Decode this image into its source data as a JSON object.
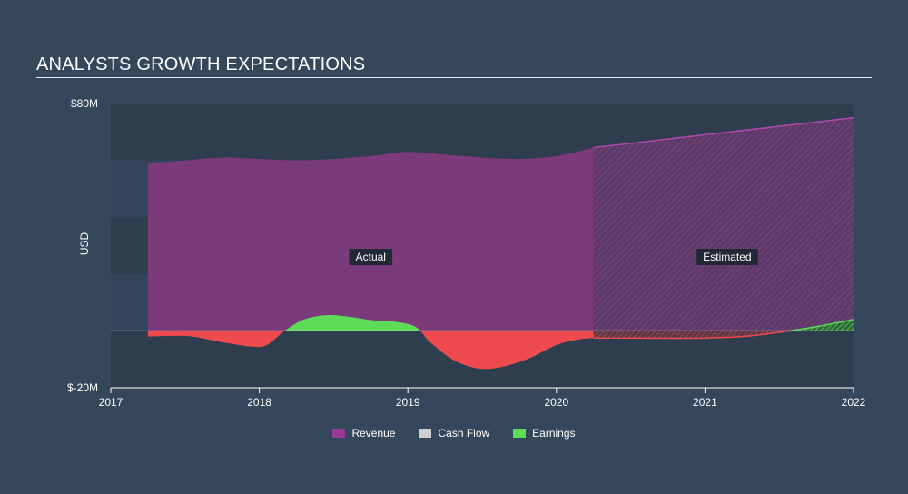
{
  "title": "ANALYSTS GROWTH EXPECTATIONS",
  "colors": {
    "background": "#35475a",
    "plot_band_dark": "#2f3e4e",
    "plot_band_light": "#33455a",
    "revenue": "#7b3a7a",
    "cash_flow": "#cfcfcf",
    "earnings_pos": "#5ddc5a",
    "earnings_neg": "#ef4b4f"
  },
  "chart_data": {
    "type": "area",
    "ylabel": "USD",
    "ylim": [
      -20,
      80
    ],
    "xlim": [
      2017,
      2022
    ],
    "y_ticks": [
      {
        "value": 80,
        "label": "$80M"
      },
      {
        "value": -20,
        "label": "$-20M"
      }
    ],
    "x_ticks": [
      {
        "value": 2017,
        "label": "2017"
      },
      {
        "value": 2018,
        "label": "2018"
      },
      {
        "value": 2019,
        "label": "2019"
      },
      {
        "value": 2020,
        "label": "2020"
      },
      {
        "value": 2021,
        "label": "2021"
      },
      {
        "value": 2022,
        "label": "2022"
      }
    ],
    "forecast_start": 2020.25,
    "annotations": [
      {
        "text": "Actual",
        "x": 2018.75,
        "y": 26
      },
      {
        "text": "Estimated",
        "x": 2021.15,
        "y": 26
      }
    ],
    "series": [
      {
        "name": "Revenue",
        "color": "#9b3a9a",
        "points": [
          [
            2017.25,
            59
          ],
          [
            2017.5,
            60
          ],
          [
            2017.75,
            61
          ],
          [
            2018.0,
            60.5
          ],
          [
            2018.25,
            60
          ],
          [
            2018.5,
            60.5
          ],
          [
            2018.75,
            61.5
          ],
          [
            2019.0,
            63
          ],
          [
            2019.25,
            62
          ],
          [
            2019.5,
            61
          ],
          [
            2019.75,
            60.5
          ],
          [
            2020.0,
            61.5
          ],
          [
            2020.25,
            64.5
          ],
          [
            2020.5,
            66
          ],
          [
            2020.75,
            67.5
          ],
          [
            2021.0,
            69
          ],
          [
            2021.25,
            70.5
          ],
          [
            2021.5,
            72
          ],
          [
            2021.75,
            73.5
          ],
          [
            2022.0,
            75
          ]
        ]
      },
      {
        "name": "Cash Flow",
        "color": "#cfcfcf",
        "points": []
      },
      {
        "name": "Earnings",
        "color": "#5ddc5a",
        "points": [
          [
            2017.25,
            -2
          ],
          [
            2017.4,
            -1.8
          ],
          [
            2017.55,
            -2
          ],
          [
            2017.75,
            -4
          ],
          [
            2017.95,
            -5.5
          ],
          [
            2018.05,
            -5
          ],
          [
            2018.17,
            0
          ],
          [
            2018.3,
            4
          ],
          [
            2018.45,
            5.5
          ],
          [
            2018.6,
            5
          ],
          [
            2018.75,
            3.8
          ],
          [
            2018.9,
            3.3
          ],
          [
            2019.05,
            1.5
          ],
          [
            2019.15,
            -4
          ],
          [
            2019.3,
            -10
          ],
          [
            2019.45,
            -13
          ],
          [
            2019.6,
            -13
          ],
          [
            2019.8,
            -10
          ],
          [
            2020.0,
            -5
          ],
          [
            2020.15,
            -3
          ],
          [
            2020.25,
            -2.5
          ],
          [
            2020.5,
            -2.5
          ],
          [
            2020.75,
            -2.6
          ],
          [
            2021.0,
            -2.5
          ],
          [
            2021.25,
            -2
          ],
          [
            2021.5,
            -0.5
          ],
          [
            2021.75,
            1.5
          ],
          [
            2022.0,
            4
          ]
        ]
      }
    ]
  },
  "legend": [
    {
      "label": "Revenue",
      "color": "#9b3a9a"
    },
    {
      "label": "Cash Flow",
      "color": "#cfcfcf"
    },
    {
      "label": "Earnings",
      "color": "#5ddc5a"
    }
  ]
}
